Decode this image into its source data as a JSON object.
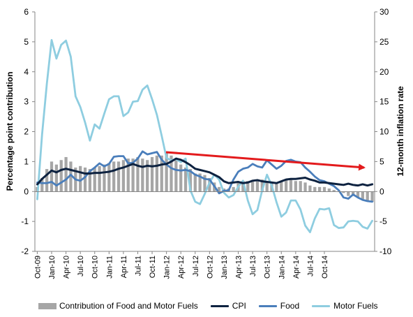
{
  "chart_data": {
    "type": "bar+line",
    "title": "",
    "x_labels": [
      "Oct-09",
      "Jan-10",
      "Apr-10",
      "Jul-10",
      "Oct-10",
      "Jan-11",
      "Apr-11",
      "Jul-11",
      "Oct-11",
      "Jan-12",
      "Apr-12",
      "Jul-12",
      "Oct-12",
      "Jan-13",
      "Apr-13",
      "Jul-13",
      "Oct-13",
      "Jan-14",
      "Apr-14",
      "Jul-14",
      "Oct-14"
    ],
    "left_axis": {
      "label": "Percentage point contribution",
      "min": -2,
      "max": 6,
      "ticks": [
        -2,
        -1,
        0,
        1,
        2,
        3,
        4,
        5,
        6
      ]
    },
    "right_axis": {
      "label": "12-month inflation rate",
      "min": -10,
      "max": 30,
      "ticks": [
        -10,
        -5,
        0,
        5,
        10,
        15,
        20,
        25,
        30
      ]
    },
    "bars": {
      "name": "Contribution of Food and Motor Fuels",
      "axis": "left",
      "color": "#a6a6a6",
      "values": [
        0.15,
        0.45,
        0.75,
        1.0,
        0.9,
        1.05,
        1.15,
        1.0,
        0.8,
        0.85,
        0.8,
        0.75,
        0.8,
        0.85,
        0.9,
        0.95,
        1.0,
        1.0,
        1.05,
        1.1,
        1.1,
        1.15,
        1.1,
        1.05,
        1.15,
        1.2,
        1.2,
        1.3,
        1.2,
        1.1,
        0.9,
        0.8,
        0.75,
        0.6,
        0.6,
        0.55,
        0.45,
        0.3,
        0.15,
        0.1,
        0.1,
        0.15,
        0.3,
        0.35,
        0.35,
        0.35,
        0.35,
        0.4,
        0.35,
        0.3,
        0.3,
        0.35,
        0.4,
        0.4,
        0.35,
        0.35,
        0.3,
        0.2,
        0.15,
        0.15,
        0.15,
        0.1,
        0.05,
        0.0,
        -0.05,
        -0.15,
        -0.15,
        -0.2,
        -0.25,
        -0.3,
        -0.35
      ]
    },
    "series": [
      {
        "name": "CPI",
        "axis": "right",
        "color": "#0d2240",
        "values": [
          1.2,
          2.1,
          2.8,
          3.5,
          3.2,
          3.6,
          3.8,
          3.6,
          3.4,
          3.2,
          3.0,
          3.0,
          3.1,
          3.1,
          3.2,
          3.3,
          3.5,
          3.8,
          4.0,
          4.3,
          4.6,
          4.3,
          4.1,
          4.3,
          4.2,
          4.3,
          4.5,
          4.6,
          5.0,
          5.5,
          5.3,
          4.9,
          4.4,
          3.8,
          3.6,
          3.4,
          3.2,
          2.8,
          2.4,
          1.7,
          1.4,
          1.5,
          1.6,
          1.4,
          1.5,
          1.8,
          1.9,
          1.7,
          1.6,
          1.5,
          1.4,
          1.7,
          2.0,
          2.1,
          2.1,
          2.2,
          2.3,
          2.0,
          1.8,
          1.5,
          1.5,
          1.4,
          1.3,
          1.2,
          1.1,
          1.3,
          1.1,
          1.0,
          1.2,
          1.0,
          1.2
        ]
      },
      {
        "name": "Food",
        "axis": "right",
        "color": "#4a7ebb",
        "values": [
          1.5,
          1.4,
          1.4,
          1.6,
          1.0,
          1.5,
          2.0,
          2.8,
          2.0,
          1.8,
          2.4,
          3.4,
          4.0,
          4.7,
          4.2,
          4.6,
          5.8,
          5.9,
          5.9,
          4.7,
          4.8,
          5.5,
          6.7,
          6.2,
          6.4,
          6.6,
          5.3,
          4.5,
          3.9,
          3.6,
          3.5,
          3.6,
          3.4,
          2.8,
          2.5,
          2.1,
          2.0,
          0.9,
          -0.3,
          0.1,
          0.2,
          2.0,
          3.3,
          3.8,
          4.0,
          4.6,
          4.2,
          4.0,
          5.2,
          4.5,
          3.8,
          4.3,
          5.1,
          5.3,
          5.0,
          4.9,
          4.0,
          3.3,
          2.5,
          1.9,
          1.7,
          1.3,
          0.9,
          0.2,
          -1.0,
          -1.2,
          -0.5,
          -1.0,
          -1.4,
          -1.6,
          -1.7
        ]
      },
      {
        "name": "Motor Fuels",
        "axis": "right",
        "color": "#8ecde0",
        "values": [
          -1.3,
          9.5,
          18.0,
          25.3,
          22.2,
          24.5,
          25.2,
          22.5,
          15.9,
          14.1,
          11.5,
          8.5,
          11.2,
          10.5,
          13.0,
          15.4,
          15.9,
          15.9,
          12.6,
          13.2,
          15.0,
          15.1,
          17.0,
          17.7,
          15.4,
          12.8,
          9.3,
          5.6,
          5.2,
          5.4,
          4.9,
          5.5,
          0.2,
          -1.7,
          -2.1,
          -0.4,
          1.5,
          2.8,
          2.0,
          -0.2,
          -1.0,
          -0.6,
          0.8,
          1.8,
          -1.5,
          -3.8,
          -3.1,
          0.2,
          2.8,
          1.0,
          -1.8,
          -4.2,
          -3.5,
          -1.5,
          -1.5,
          -3.0,
          -5.7,
          -6.8,
          -4.5,
          -2.9,
          -3.0,
          -2.8,
          -5.6,
          -6.1,
          -6.0,
          -5.0,
          -4.9,
          -5.0,
          -5.9,
          -6.2,
          -4.9
        ]
      }
    ],
    "annotations": [
      {
        "type": "arrow",
        "color": "#e31a1c"
      }
    ],
    "grid": false,
    "legend_position": "bottom"
  }
}
